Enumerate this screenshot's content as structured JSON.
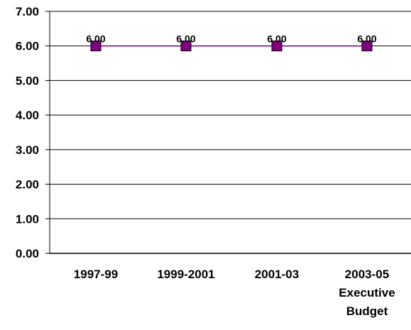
{
  "chart_data": {
    "type": "line",
    "categories": [
      [
        "1997-99"
      ],
      [
        "1999-2001"
      ],
      [
        "2001-03"
      ],
      [
        "2003-05",
        "Executive",
        "Budget"
      ]
    ],
    "series": [
      {
        "values": [
          6.0,
          6.0,
          6.0,
          6.0
        ],
        "data_labels": [
          "6.00",
          "6.00",
          "6.00",
          "6.00"
        ],
        "line_color": "#800080",
        "marker_color": "#800080",
        "marker": "square"
      }
    ],
    "y_ticks": [
      "0.00",
      "1.00",
      "2.00",
      "3.00",
      "4.00",
      "5.00",
      "6.00",
      "7.00"
    ],
    "ylim": [
      0,
      7
    ],
    "grid": true,
    "legend": "none",
    "title": "",
    "xlabel": "",
    "ylabel": ""
  }
}
